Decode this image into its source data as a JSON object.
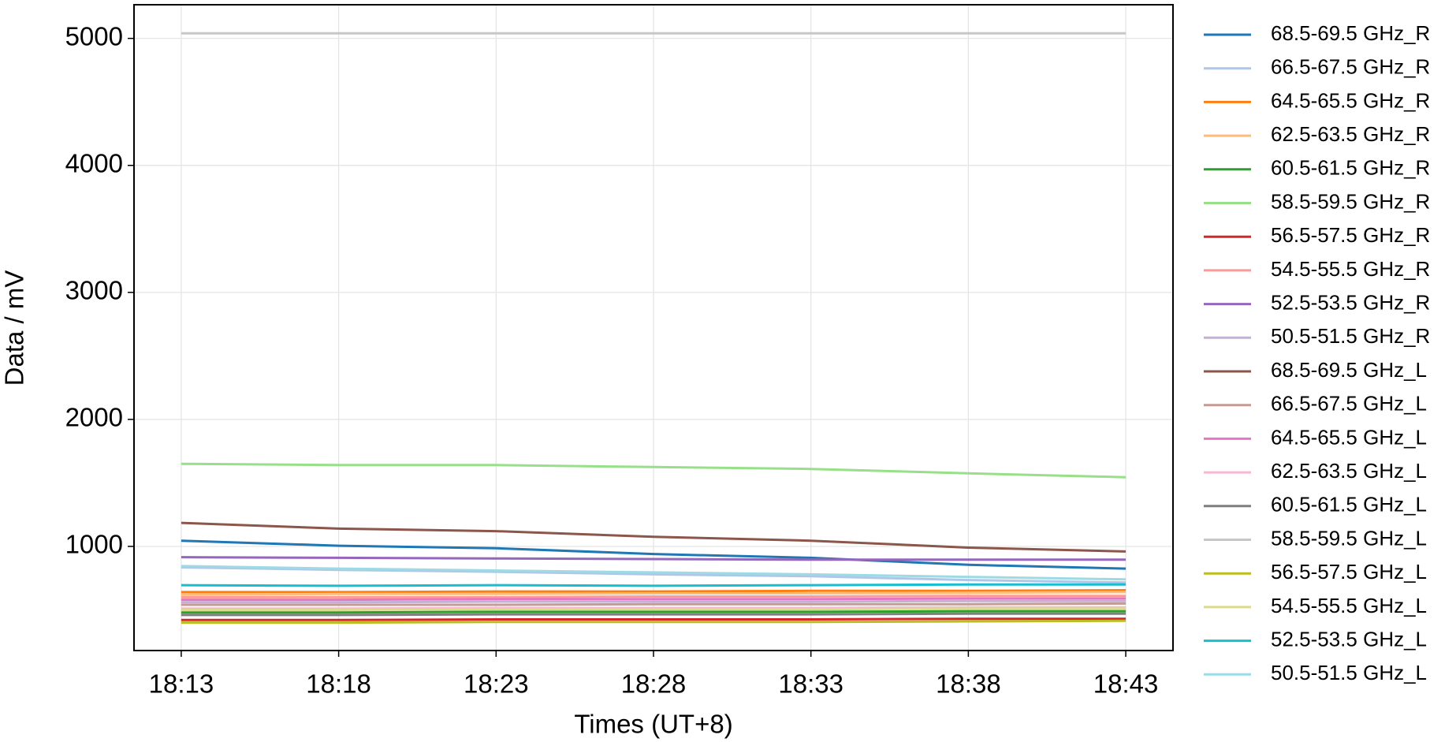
{
  "chart_data": {
    "type": "line",
    "x_label": "Times (UT+8)",
    "y_label": "Data / mV",
    "x": [
      "18:13",
      "18:18",
      "18:23",
      "18:28",
      "18:33",
      "18:38",
      "18:43"
    ],
    "ylim": [
      180,
      5265
    ],
    "yticks": [
      1000,
      2000,
      3000,
      4000,
      5000
    ],
    "grid": true,
    "legend": "outside-right",
    "series": [
      {
        "name": "68.5-69.5 GHz_R",
        "color": "#1f77b4",
        "values": [
          1045,
          1005,
          985,
          940,
          910,
          855,
          825
        ]
      },
      {
        "name": "66.5-67.5 GHz_R",
        "color": "#aec7e8",
        "values": [
          835,
          815,
          800,
          780,
          765,
          735,
          715
        ]
      },
      {
        "name": "64.5-65.5 GHz_R",
        "color": "#ff7f0e",
        "values": [
          640,
          640,
          645,
          645,
          650,
          650,
          655
        ]
      },
      {
        "name": "62.5-63.5 GHz_R",
        "color": "#ffbb78",
        "values": [
          620,
          625,
          625,
          630,
          630,
          635,
          640
        ]
      },
      {
        "name": "60.5-61.5 GHz_R",
        "color": "#2ca02c",
        "values": [
          480,
          480,
          485,
          485,
          485,
          490,
          490
        ]
      },
      {
        "name": "58.5-59.5 GHz_R",
        "color": "#98df8a",
        "values": [
          1650,
          1640,
          1640,
          1625,
          1610,
          1575,
          1545
        ]
      },
      {
        "name": "56.5-57.5 GHz_R",
        "color": "#d62728",
        "values": [
          420,
          420,
          425,
          425,
          425,
          430,
          430
        ]
      },
      {
        "name": "54.5-55.5 GHz_R",
        "color": "#ff9896",
        "values": [
          600,
          600,
          600,
          605,
          605,
          610,
          610
        ]
      },
      {
        "name": "52.5-53.5 GHz_R",
        "color": "#9467bd",
        "values": [
          915,
          910,
          905,
          900,
          895,
          895,
          895
        ]
      },
      {
        "name": "50.5-51.5 GHz_R",
        "color": "#c5b0d5",
        "values": [
          560,
          560,
          565,
          565,
          565,
          570,
          570
        ]
      },
      {
        "name": "68.5-69.5 GHz_L",
        "color": "#8c564b",
        "values": [
          1185,
          1140,
          1120,
          1075,
          1045,
          990,
          960
        ]
      },
      {
        "name": "66.5-67.5 GHz_L",
        "color": "#c49c94",
        "values": [
          540,
          540,
          540,
          545,
          545,
          545,
          550
        ]
      },
      {
        "name": "64.5-65.5 GHz_L",
        "color": "#e377c2",
        "values": [
          580,
          580,
          585,
          585,
          585,
          590,
          590
        ]
      },
      {
        "name": "62.5-63.5 GHz_L",
        "color": "#f7b6d2",
        "values": [
          510,
          510,
          515,
          515,
          515,
          520,
          520
        ]
      },
      {
        "name": "60.5-61.5 GHz_L",
        "color": "#7f7f7f",
        "values": [
          460,
          460,
          465,
          465,
          465,
          470,
          470
        ]
      },
      {
        "name": "58.5-59.5 GHz_L",
        "color": "#c7c7c7",
        "values": [
          5040,
          5040,
          5040,
          5040,
          5040,
          5040,
          5040
        ]
      },
      {
        "name": "56.5-57.5 GHz_L",
        "color": "#bcbd22",
        "values": [
          400,
          400,
          405,
          405,
          405,
          410,
          415
        ]
      },
      {
        "name": "54.5-55.5 GHz_L",
        "color": "#dbdb8d",
        "values": [
          500,
          500,
          505,
          505,
          505,
          510,
          510
        ]
      },
      {
        "name": "52.5-53.5 GHz_L",
        "color": "#17becf",
        "values": [
          695,
          690,
          695,
          690,
          695,
          700,
          700
        ]
      },
      {
        "name": "50.5-51.5 GHz_L",
        "color": "#9edae5",
        "values": [
          845,
          825,
          810,
          795,
          780,
          760,
          740
        ]
      }
    ]
  }
}
